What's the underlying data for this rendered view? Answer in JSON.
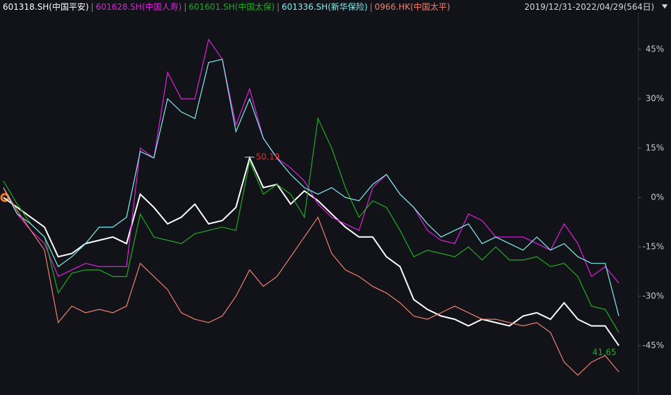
{
  "chart_data": {
    "type": "line",
    "date_range": "2019/12/31-2022/04/29(564日)",
    "categories": [
      null,
      null,
      null,
      null,
      null,
      null,
      null,
      null,
      null,
      null,
      null,
      null,
      null,
      null,
      null,
      null,
      null,
      null,
      null,
      null,
      null,
      null,
      null,
      null,
      null,
      null,
      null,
      null,
      null,
      null,
      null,
      null,
      null,
      null,
      null,
      null,
      null,
      null,
      null,
      null,
      null,
      null,
      null,
      null,
      null,
      null
    ],
    "series": [
      {
        "name": "601318.SH(中国平安)",
        "color": "#ffffff",
        "values": [
          0,
          -3,
          -6,
          -9,
          -18,
          -17,
          -14,
          -13,
          -12,
          -14,
          1,
          -3,
          -8,
          -6,
          -2,
          -8,
          -7,
          -3,
          12,
          3,
          4,
          -2,
          2,
          -1,
          -5,
          -9,
          -12,
          -12,
          -18,
          -21,
          -31,
          -34,
          -36,
          -37,
          -39,
          -37,
          -38,
          -39,
          -36,
          -35,
          -37,
          -32,
          -37,
          -39,
          -39,
          -45
        ]
      },
      {
        "name": "601628.SH(中国人寿)",
        "color": "#e020e0",
        "values": [
          3,
          -5,
          -10,
          -14,
          -24,
          -22,
          -20,
          -21,
          -21,
          -21,
          15,
          12,
          38,
          30,
          30,
          48,
          42,
          22,
          33,
          18,
          12,
          9,
          5,
          -2,
          -6,
          -8,
          -10,
          3,
          7,
          1,
          -3,
          -10,
          -13,
          -14,
          -5,
          -7,
          -12,
          -12,
          -12,
          -14,
          -16,
          -8,
          -14,
          -24,
          -21,
          -26
        ]
      },
      {
        "name": "601601.SH(中国太保)",
        "color": "#1fae1f",
        "values": [
          5,
          -2,
          -8,
          -12,
          -29,
          -23,
          -22,
          -22,
          -24,
          -24,
          -5,
          -12,
          -13,
          -14,
          -11,
          -10,
          -9,
          -10,
          11,
          1,
          4,
          1,
          -6,
          24,
          15,
          3,
          -6,
          -1,
          -3,
          -10,
          -18,
          -16,
          -17,
          -18,
          -15,
          -19,
          -15,
          -19,
          -19,
          -18,
          -21,
          -20,
          -24,
          -33,
          -34,
          -41
        ]
      },
      {
        "name": "601336.SH(新华保险)",
        "color": "#80f0f0",
        "values": [
          3,
          -5,
          -8,
          -12,
          -21,
          -18,
          -14,
          -9,
          -9,
          -6,
          14,
          12,
          30,
          26,
          24,
          41,
          42,
          20,
          30,
          18,
          12,
          7,
          3,
          1,
          3,
          0,
          -1,
          4,
          7,
          1,
          -3,
          -8,
          -12,
          -10,
          -8,
          -14,
          -12,
          -14,
          -16,
          -12,
          -16,
          -14,
          -18,
          -20,
          -20,
          -36
        ]
      },
      {
        "name": "0966.HK(中国太平)",
        "color": "#f08070",
        "values": [
          3,
          -4,
          -10,
          -16,
          -38,
          -33,
          -35,
          -34,
          -35,
          -33,
          -20,
          -24,
          -28,
          -35,
          -37,
          -38,
          -36,
          -30,
          -22,
          -27,
          -24,
          -18,
          -12,
          -6,
          -17,
          -22,
          -24,
          -27,
          -29,
          -32,
          -36,
          -37,
          -35,
          -33,
          -35,
          -37,
          -37,
          -38,
          -39,
          -38,
          -41,
          -50,
          -54,
          -50,
          -48,
          -53
        ]
      }
    ],
    "annotations": [
      {
        "text": "50.19",
        "color": "#e83030"
      },
      {
        "text": "41.65",
        "color": "#1fae1f"
      }
    ],
    "ylim": [
      -60,
      56.2
    ],
    "yticks": [
      {
        "value": 45,
        "label": "45%"
      },
      {
        "value": 30,
        "label": "30%"
      },
      {
        "value": 15,
        "label": "15%"
      },
      {
        "value": 0,
        "label": "0%"
      },
      {
        "value": -15,
        "label": "-15%"
      },
      {
        "value": -30,
        "label": "-30%"
      },
      {
        "value": -45,
        "label": "-45%"
      }
    ],
    "grid": false
  }
}
